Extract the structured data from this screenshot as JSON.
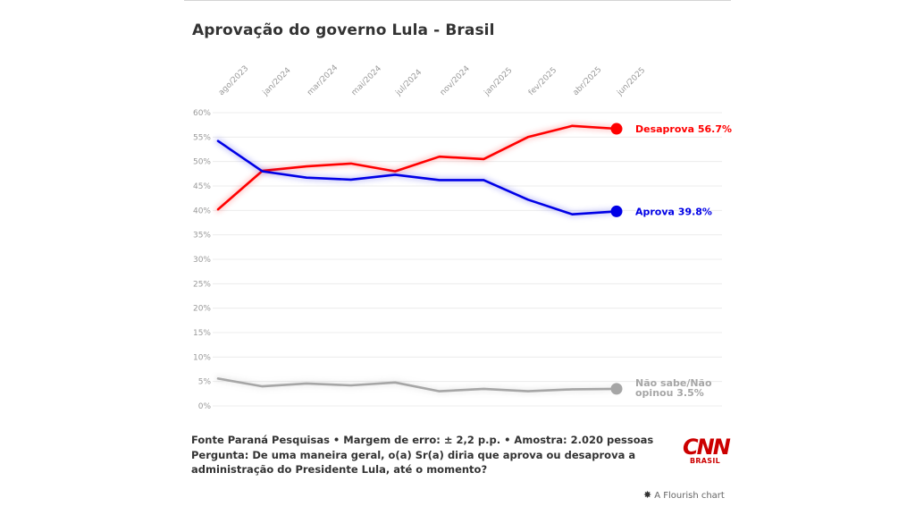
{
  "title": "Aprovação do governo Lula - Brasil",
  "footer": {
    "source": "Fonte Paraná Pesquisas • Margem de erro: ± 2,2 p.p. • Amostra: 2.020 pessoas",
    "question": "Pergunta: De uma maneira geral, o(a) Sr(a) diria que aprova ou desaprova a administração do Presidente Lula, até o momento?"
  },
  "logo": {
    "main": "CNN",
    "sub": "BRASIL"
  },
  "credit": {
    "icon": "flourish-star-icon",
    "text": "A Flourish chart"
  },
  "chart_data": {
    "type": "line",
    "title": "Aprovação do governo Lula - Brasil",
    "x": [
      "ago/2023",
      "jan/2024",
      "mar/2024",
      "mai/2024",
      "jul/2024",
      "nov/2024",
      "jan/2025",
      "fev/2025",
      "abr/2025",
      "jun/2025"
    ],
    "y_ticks": [
      "0%",
      "5%",
      "10%",
      "15%",
      "20%",
      "25%",
      "30%",
      "35%",
      "40%",
      "45%",
      "50%",
      "55%",
      "60%"
    ],
    "ylim": [
      0,
      60
    ],
    "grid": true,
    "series": [
      {
        "name": "Desaprova",
        "end_label": "Desaprova 56.7%",
        "color": "#ff0000",
        "values": [
          40.2,
          48.1,
          49.0,
          49.6,
          48.0,
          51.0,
          50.5,
          55.0,
          57.3,
          56.7
        ]
      },
      {
        "name": "Aprova",
        "end_label": "Aprova 39.8%",
        "color": "#0000e6",
        "values": [
          54.2,
          48.0,
          46.7,
          46.3,
          47.3,
          46.2,
          46.2,
          42.2,
          39.2,
          39.8
        ]
      },
      {
        "name": "Não sabe/Não opinou",
        "end_label_lines": [
          "Não sabe/Não",
          "opinou 3.5%"
        ],
        "color": "#a6a6a6",
        "values": [
          5.6,
          4.0,
          4.6,
          4.2,
          4.8,
          3.0,
          3.5,
          3.0,
          3.4,
          3.5
        ]
      }
    ]
  }
}
